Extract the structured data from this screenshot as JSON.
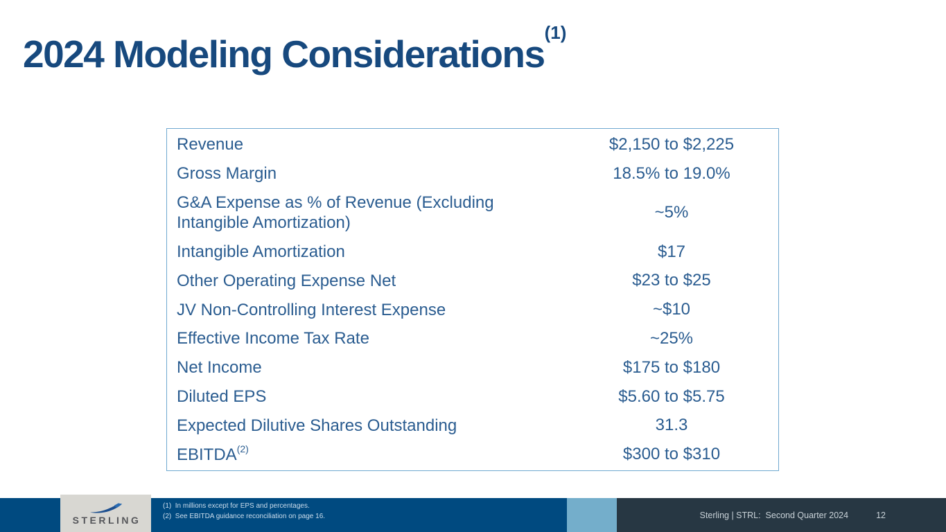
{
  "title": "2024 Modeling Considerations",
  "title_superscript": "(1)",
  "table": {
    "rows": [
      {
        "label": "Revenue",
        "value": "$2,150 to $2,225"
      },
      {
        "label": "Gross Margin",
        "value": "18.5% to 19.0%"
      },
      {
        "label": "G&A Expense as % of Revenue (Excluding Intangible Amortization)",
        "value": "~5%"
      },
      {
        "label": "Intangible Amortization",
        "value": "$17"
      },
      {
        "label": "Other Operating Expense Net",
        "value": "$23 to $25"
      },
      {
        "label": "JV Non-Controlling Interest Expense",
        "value": "~$10"
      },
      {
        "label": "Effective Income Tax Rate",
        "value": "~25%"
      },
      {
        "label": "Net Income",
        "value": "$175 to $180"
      },
      {
        "label": "Diluted EPS",
        "value": "$5.60 to $5.75"
      },
      {
        "label": "Expected Dilutive Shares Outstanding",
        "value": "31.3"
      },
      {
        "label": "EBITDA",
        "label_superscript": "(2)",
        "value": "$300 to $310"
      }
    ]
  },
  "footnotes": [
    "(1)  In millions except for EPS and percentages.",
    "(2)  See EBITDA guidance reconciliation on page 16."
  ],
  "footer": {
    "logo_text": "STERLING",
    "deck_title": "Sterling | STRL:  Second Quarter 2024",
    "page_number": "12"
  },
  "colors": {
    "title_blue": "#17497E",
    "table_text_blue": "#2A5C90",
    "table_border_blue": "#6FA8D0",
    "footer_dark_blue": "#004A80",
    "footer_light_blue": "#74AECB",
    "footer_slate": "#273743",
    "footnote_text": "#CBDDEC",
    "footer_text": "#C9D2D8",
    "logo_box_gray": "#D8D7D2",
    "logo_text_gray": "#55565A",
    "logo_swoosh_blue": "#1D4F8F"
  }
}
